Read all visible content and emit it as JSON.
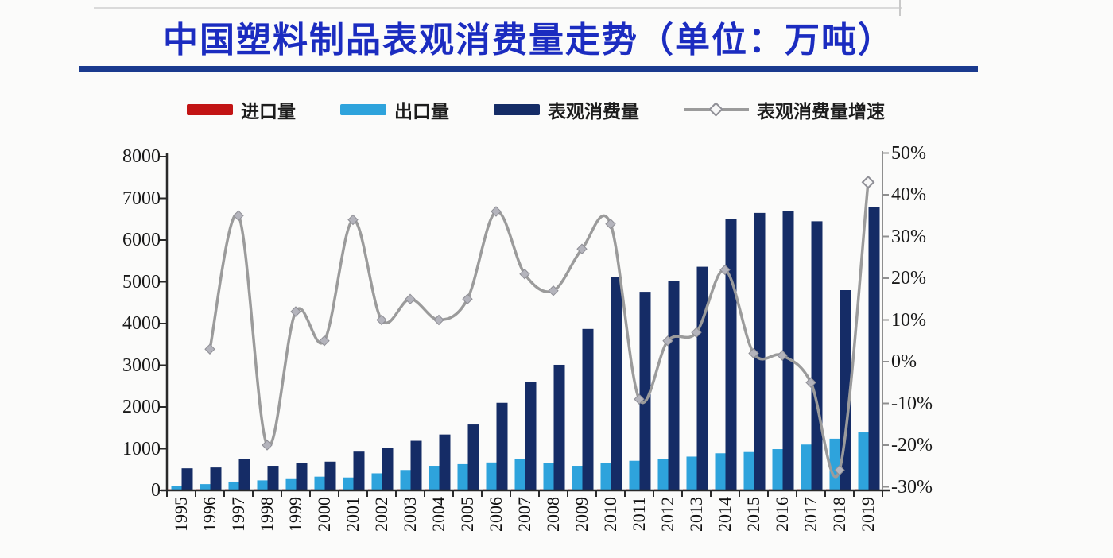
{
  "title": {
    "text": "中国塑料制品表观消费量走势（单位：万吨）",
    "color": "#1b2cc0",
    "underline_color": "#1a3a8e"
  },
  "legend": {
    "items": [
      {
        "label": "进口量",
        "type": "bar",
        "color": "#c21414"
      },
      {
        "label": "出口量",
        "type": "bar",
        "color": "#2ea3dc"
      },
      {
        "label": "表观消费量",
        "type": "bar",
        "color": "#152c66"
      },
      {
        "label": "表观消费量增速",
        "type": "line",
        "color": "#9b9b9b"
      }
    ]
  },
  "chart_data": {
    "type": "bar",
    "subtype": "combo-bar-line-dual-axis",
    "title": "中国塑料制品表观消费量走势（单位：万吨）",
    "categories": [
      "1995",
      "1996",
      "1997",
      "1998",
      "1999",
      "2000",
      "2001",
      "2002",
      "2003",
      "2004",
      "2005",
      "2006",
      "2007",
      "2008",
      "2009",
      "2010",
      "2011",
      "2012",
      "2013",
      "2014",
      "2015",
      "2016",
      "2017",
      "2018",
      "2019"
    ],
    "series": [
      {
        "name": "进口量",
        "type": "bar",
        "axis": "left",
        "color": "#c21414",
        "values": [
          25,
          25,
          25,
          25,
          25,
          25,
          25,
          25,
          25,
          25,
          25,
          25,
          25,
          25,
          25,
          25,
          25,
          25,
          25,
          25,
          25,
          25,
          25,
          25,
          25
        ]
      },
      {
        "name": "出口量",
        "type": "bar",
        "axis": "left",
        "color": "#2ea3dc",
        "values": [
          100,
          150,
          210,
          240,
          290,
          330,
          310,
          410,
          490,
          590,
          630,
          670,
          750,
          660,
          590,
          660,
          710,
          760,
          810,
          890,
          920,
          990,
          1100,
          1240,
          1390
        ]
      },
      {
        "name": "表观消费量",
        "type": "bar",
        "axis": "left",
        "color": "#152c66",
        "values": [
          530,
          550,
          745,
          590,
          660,
          690,
          930,
          1020,
          1190,
          1340,
          1580,
          2100,
          2600,
          3010,
          3870,
          5110,
          4760,
          5010,
          5360,
          6500,
          6650,
          6700,
          6450,
          4800,
          6800
        ]
      },
      {
        "name": "表观消费量增速",
        "type": "line",
        "axis": "right",
        "unit": "%",
        "color": "#9b9b9b",
        "values": [
          null,
          3,
          35,
          -20,
          12,
          5,
          34,
          10,
          15,
          10,
          15,
          36,
          21,
          17,
          27,
          33,
          -9,
          5,
          7,
          22,
          2,
          1.5,
          -5,
          -26,
          43
        ]
      }
    ],
    "left_axis": {
      "min": 0,
      "max": 8000,
      "step": 1000,
      "tick_labels": [
        "0",
        "1000",
        "2000",
        "3000",
        "4000",
        "5000",
        "6000",
        "7000",
        "8000"
      ]
    },
    "right_axis": {
      "min": -30,
      "max": 50,
      "step": 10,
      "tick_labels": [
        "-30%",
        "-20%",
        "-10%",
        "0%",
        "10%",
        "20%",
        "30%",
        "40%",
        "50%"
      ]
    },
    "grid": false,
    "legend_position": "top"
  },
  "colors": {
    "axis": "#2a2a2a",
    "right_axis_line": "#8f8f8f",
    "line_marker_fill": "#b4b4bc",
    "line_marker_stroke": "#8f8f96"
  }
}
